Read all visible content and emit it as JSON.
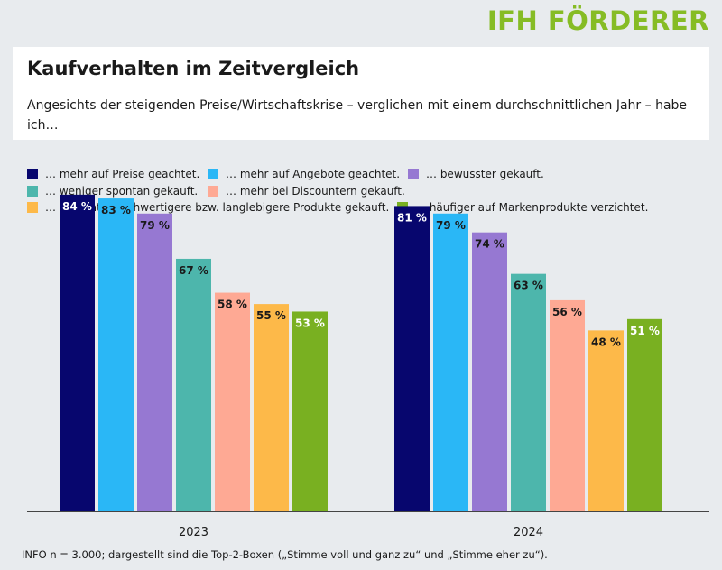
{
  "brand": "IFH FÖRDERER",
  "header": {
    "title": "Kaufverhalten im Zeitvergleich",
    "subtitle": "Angesichts der steigenden Preise/Wirtschaftskrise – verglichen mit einem durchschnittlichen Jahr – habe ich…"
  },
  "footnote": "INFO n = 3.000; dargestellt sind die Top-2-Boxen („Stimme voll und ganz zu“ und „Stimme eher zu“).",
  "chart_data": {
    "type": "bar",
    "categories": [
      "2023",
      "2024"
    ],
    "ylim": [
      0,
      100
    ],
    "grid": false,
    "legend_position": "top",
    "value_suffix": " %",
    "series": [
      {
        "name": "… mehr auf Preise geachtet.",
        "color": "#07066e",
        "label_color": "#ffffff",
        "values": [
          84,
          81
        ]
      },
      {
        "name": "… mehr auf Angebote geachtet.",
        "color": "#2ab7f6",
        "label_color": "#1a1a1a",
        "values": [
          83,
          79
        ]
      },
      {
        "name": "… bewusster gekauft.",
        "color": "#9678d2",
        "label_color": "#1a1a1a",
        "values": [
          79,
          74
        ]
      },
      {
        "name": "… weniger spontan gekauft.",
        "color": "#4db6ac",
        "label_color": "#1a1a1a",
        "values": [
          67,
          63
        ]
      },
      {
        "name": "… mehr bei Discountern gekauft.",
        "color": "#fea994",
        "label_color": "#1a1a1a",
        "values": [
          58,
          56
        ]
      },
      {
        "name": "… qualitativ hochwertigere bzw. langlebigere Produkte gekauft.",
        "color": "#fdb949",
        "label_color": "#1a1a1a",
        "values": [
          55,
          48
        ]
      },
      {
        "name": "… häufiger auf Markenprodukte verzichtet.",
        "color": "#79b021",
        "label_color": "#ffffff",
        "values": [
          53,
          51
        ]
      }
    ]
  }
}
